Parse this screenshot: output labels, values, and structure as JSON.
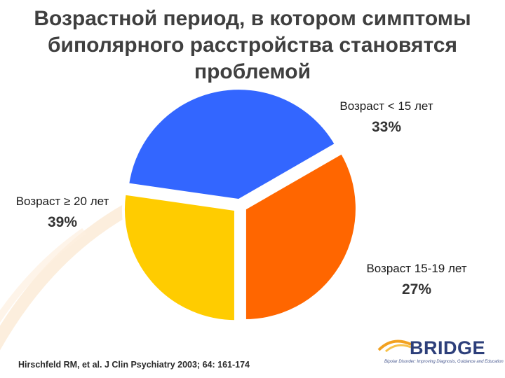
{
  "title": {
    "line1": "Возрастной период, в котором симптомы",
    "line2": "биполярного расстройства становятся",
    "line3": "проблемой"
  },
  "chart_data": {
    "type": "pie",
    "title": "Возрастной период, в котором симптомы биполярного расстройства становятся проблемой",
    "start_angle_deg": 60,
    "direction": "clockwise",
    "slices": [
      {
        "label": "Возраст < 15 лет",
        "value": 33,
        "value_label": "33%",
        "color": "#ff6600"
      },
      {
        "label": "Возраст 15-19 лет",
        "value": 27,
        "value_label": "27%",
        "color": "#ffcc00"
      },
      {
        "label": "Возраст ≥ 20 лет",
        "value": 39,
        "value_label": "39%",
        "color": "#3366ff"
      }
    ]
  },
  "citation": "Hirschfeld RM, et al. J Clin Psychiatry 2003; 64: 161-174",
  "logo": {
    "word": "BRIDGE",
    "tagline": "Bipolar Disorder: Improving Diagnosis, Guidance and Education"
  },
  "colors": {
    "title": "#3f3f3f",
    "background_arc": "#fbe7cf"
  }
}
